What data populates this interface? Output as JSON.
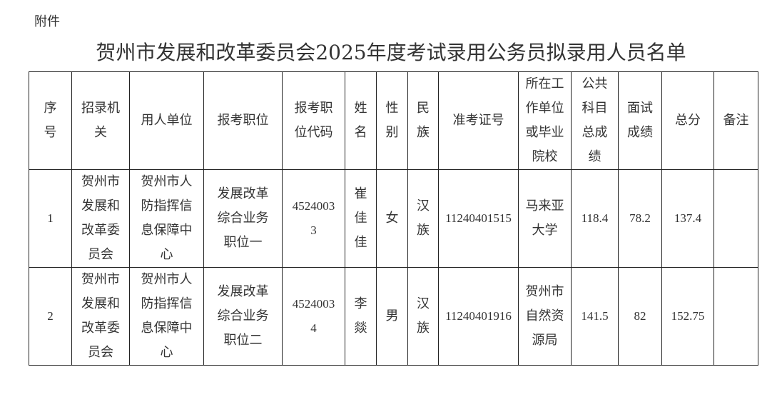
{
  "attachment_label": "附件",
  "title": "贺州市发展和改革委员会2025年度考试录用公务员拟录用人员名单",
  "headers": [
    "序号",
    "招录机关",
    "用人单位",
    "报考职位",
    "报考职位代码",
    "姓名",
    "性别",
    "民族",
    "准考证号",
    "所在工作单位或毕业院校",
    "公共科目总成绩",
    "面试成绩",
    "总分",
    "备注"
  ],
  "rows": [
    [
      "1",
      "贺州市发展和改革委员会",
      "贺州市人防指挥信息保障中心",
      "发展改革综合业务职位一",
      "45240033",
      "崔佳佳",
      "女",
      "汉族",
      "11240401515",
      "马来亚大学",
      "118.4",
      "78.2",
      "137.4",
      ""
    ],
    [
      "2",
      "贺州市发展和改革委员会",
      "贺州市人防指挥信息保障中心",
      "发展改革综合业务职位二",
      "45240034",
      "李燚",
      "男",
      "汉族",
      "11240401916",
      "贺州市自然资源局",
      "141.5",
      "82",
      "152.75",
      ""
    ]
  ]
}
